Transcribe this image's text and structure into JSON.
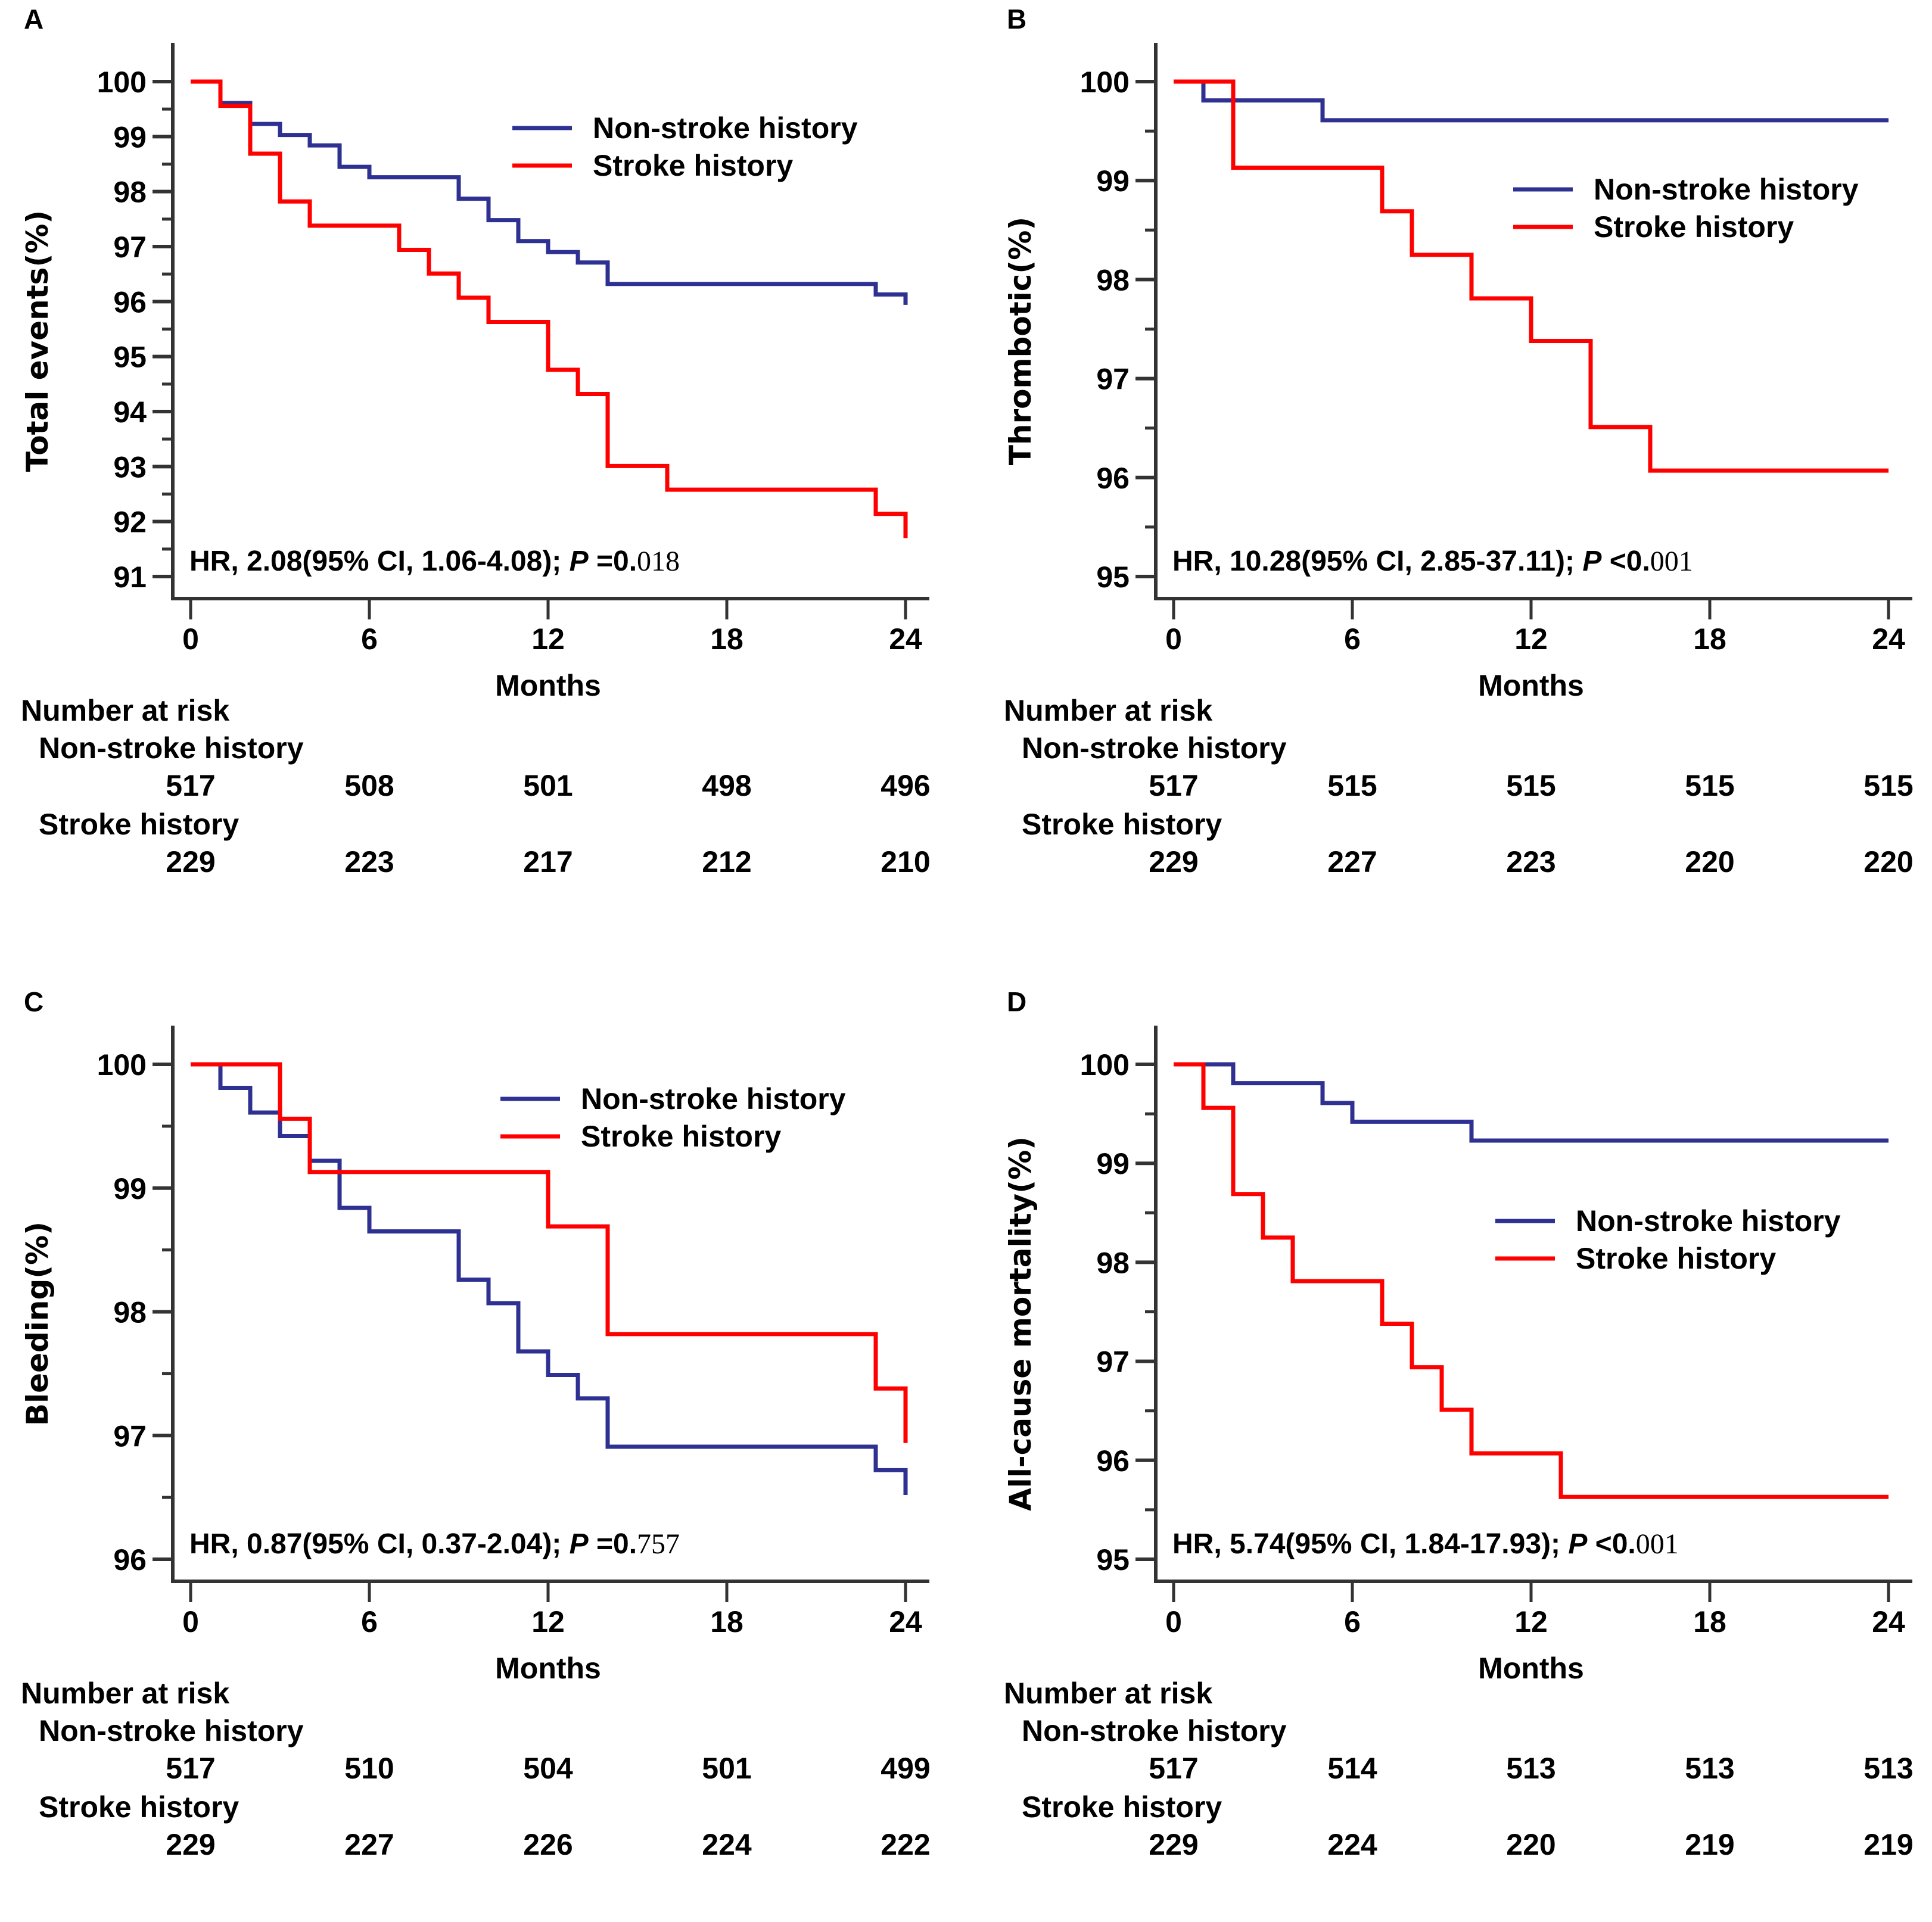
{
  "colors": {
    "non_stroke": "#2e3192",
    "stroke": "#ff0000",
    "axis": "#333333"
  },
  "chart_data": [
    {
      "panel": "A",
      "type": "line",
      "subtype": "kaplan-meier-step",
      "ylabel": "Total events(%)",
      "xlabel": "Months",
      "xlim": [
        0,
        24
      ],
      "ylim": [
        91,
        100
      ],
      "xticks": [
        0,
        6,
        12,
        18,
        24
      ],
      "yticks": [
        91,
        92,
        93,
        94,
        95,
        96,
        97,
        98,
        99,
        100
      ],
      "legend": {
        "position": "top-right",
        "entries": [
          "Non-stroke history",
          "Stroke history"
        ]
      },
      "annotation": {
        "text": "HR, 2.08(95% CI, 1.06-4.08); ",
        "p_label": "P",
        "p_op": " =",
        "p_value": "0.018"
      },
      "series": [
        {
          "name": "Non-stroke history",
          "x": [
            0,
            1,
            2,
            3,
            4,
            5,
            6,
            9,
            10,
            11,
            12,
            13,
            14,
            23,
            24
          ],
          "y": [
            100,
            99.61,
            99.23,
            99.03,
            98.84,
            98.45,
            98.26,
            97.87,
            97.48,
            97.1,
            96.9,
            96.71,
            96.32,
            96.13,
            95.94
          ]
        },
        {
          "name": "Stroke history",
          "x": [
            0,
            1,
            2,
            3,
            4,
            7,
            8,
            9,
            10,
            12,
            13,
            14,
            16,
            23,
            24
          ],
          "y": [
            100,
            99.56,
            98.69,
            97.82,
            97.38,
            96.94,
            96.51,
            96.07,
            95.63,
            94.76,
            94.32,
            93.01,
            92.58,
            92.14,
            91.7
          ]
        }
      ],
      "risk_table": {
        "title": "Number at risk",
        "times": [
          0,
          6,
          12,
          18,
          24
        ],
        "rows": [
          {
            "label": "Non-stroke history",
            "values": [
              "517",
              "508",
              "501",
              "498",
              "496"
            ]
          },
          {
            "label": "Stroke history",
            "values": [
              "229",
              "223",
              "217",
              "212",
              "210"
            ]
          }
        ]
      }
    },
    {
      "panel": "B",
      "type": "line",
      "subtype": "kaplan-meier-step",
      "ylabel": "Thrombotic(%)",
      "xlabel": "Months",
      "xlim": [
        0,
        24
      ],
      "ylim": [
        95,
        100
      ],
      "xticks": [
        0,
        6,
        12,
        18,
        24
      ],
      "yticks": [
        95,
        96,
        97,
        98,
        99,
        100
      ],
      "legend": {
        "position": "top-right",
        "entries": [
          "Non-stroke history",
          "Stroke history"
        ]
      },
      "annotation": {
        "text": "HR, 10.28(95% CI, 2.85-37.11); ",
        "p_label": "P",
        "p_op": " <",
        "p_value": "0.001"
      },
      "series": [
        {
          "name": "Non-stroke history",
          "x": [
            0,
            1,
            5,
            24
          ],
          "y": [
            100,
            99.81,
            99.61,
            99.61
          ]
        },
        {
          "name": "Stroke history",
          "x": [
            0,
            2,
            7,
            8,
            10,
            12,
            14,
            16,
            24
          ],
          "y": [
            100,
            99.13,
            98.69,
            98.25,
            97.81,
            97.38,
            96.51,
            96.07,
            96.07
          ]
        }
      ],
      "risk_table": {
        "title": "Number at risk",
        "times": [
          0,
          6,
          12,
          18,
          24
        ],
        "rows": [
          {
            "label": "Non-stroke history",
            "values": [
              "517",
              "515",
              "515",
              "515",
              "515"
            ]
          },
          {
            "label": "Stroke history",
            "values": [
              "229",
              "227",
              "223",
              "220",
              "220"
            ]
          }
        ]
      }
    },
    {
      "panel": "C",
      "type": "line",
      "subtype": "kaplan-meier-step",
      "ylabel": "Bleeding(%)",
      "xlabel": "Months",
      "xlim": [
        0,
        24
      ],
      "ylim": [
        96,
        100
      ],
      "xticks": [
        0,
        6,
        12,
        18,
        24
      ],
      "yticks": [
        96,
        97,
        98,
        99,
        100
      ],
      "legend": {
        "position": "top-right",
        "entries": [
          "Non-stroke history",
          "Stroke history"
        ]
      },
      "annotation": {
        "text": "HR, 0.87(95% CI, 0.37-2.04); ",
        "p_label": "P",
        "p_op": " =",
        "p_value": "0.757"
      },
      "series": [
        {
          "name": "Non-stroke history",
          "x": [
            0,
            1,
            2,
            3,
            4,
            5,
            6,
            9,
            10,
            11,
            12,
            13,
            14,
            23,
            24
          ],
          "y": [
            100,
            99.81,
            99.61,
            99.42,
            99.22,
            98.84,
            98.65,
            98.26,
            98.07,
            97.68,
            97.49,
            97.3,
            96.91,
            96.72,
            96.52
          ]
        },
        {
          "name": "Stroke history",
          "x": [
            0,
            3,
            4,
            12,
            14,
            23,
            24
          ],
          "y": [
            100,
            99.56,
            99.13,
            98.69,
            97.82,
            97.38,
            96.94
          ]
        }
      ],
      "risk_table": {
        "title": "Number at risk",
        "times": [
          0,
          6,
          12,
          18,
          24
        ],
        "rows": [
          {
            "label": "Non-stroke history",
            "values": [
              "517",
              "510",
              "504",
              "501",
              "499"
            ]
          },
          {
            "label": "Stroke history",
            "values": [
              "229",
              "227",
              "226",
              "224",
              "222"
            ]
          }
        ]
      }
    },
    {
      "panel": "D",
      "type": "line",
      "subtype": "kaplan-meier-step",
      "ylabel": "All-cause mortality(%)",
      "xlabel": "Months",
      "xlim": [
        0,
        24
      ],
      "ylim": [
        95,
        100
      ],
      "xticks": [
        0,
        6,
        12,
        18,
        24
      ],
      "yticks": [
        95,
        96,
        97,
        98,
        99,
        100
      ],
      "legend": {
        "position": "center-right",
        "entries": [
          "Non-stroke history",
          "Stroke history"
        ]
      },
      "annotation": {
        "text": "HR, 5.74(95% CI, 1.84-17.93); ",
        "p_label": "P",
        "p_op": " <",
        "p_value": "0.001"
      },
      "series": [
        {
          "name": "Non-stroke history",
          "x": [
            0,
            2,
            5,
            6,
            10,
            24
          ],
          "y": [
            100,
            99.81,
            99.61,
            99.42,
            99.23,
            99.23
          ]
        },
        {
          "name": "Stroke history",
          "x": [
            0,
            1,
            2,
            3,
            4,
            7,
            8,
            9,
            10,
            13,
            24
          ],
          "y": [
            100,
            99.56,
            98.69,
            98.25,
            97.81,
            97.38,
            96.94,
            96.51,
            96.07,
            95.63,
            95.63
          ]
        }
      ],
      "risk_table": {
        "title": "Number at risk",
        "times": [
          0,
          6,
          12,
          18,
          24
        ],
        "rows": [
          {
            "label": "Non-stroke history",
            "values": [
              "517",
              "514",
              "513",
              "513",
              "513"
            ]
          },
          {
            "label": "Stroke history",
            "values": [
              "229",
              "224",
              "220",
              "219",
              "219"
            ]
          }
        ]
      }
    }
  ]
}
